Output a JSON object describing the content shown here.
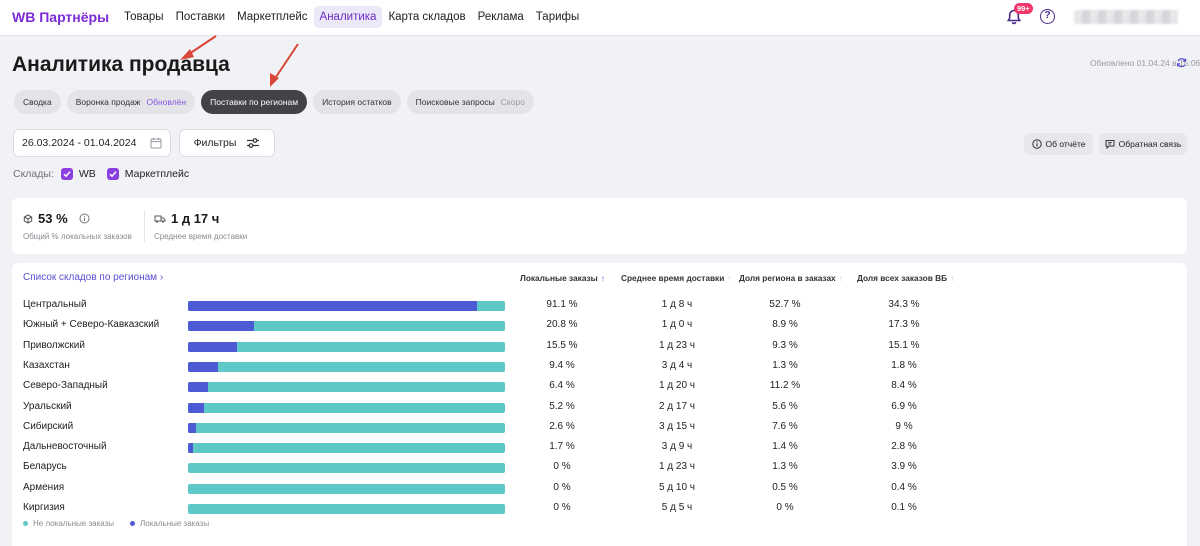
{
  "brand": "WB Партнёры",
  "nav": {
    "items": [
      {
        "label": "Товары"
      },
      {
        "label": "Поставки"
      },
      {
        "label": "Маркетплейс"
      },
      {
        "label": "Аналитика",
        "active": true
      },
      {
        "label": "Карта складов"
      },
      {
        "label": "Реклама"
      },
      {
        "label": "Тарифы"
      }
    ],
    "notifications_badge": "99+",
    "help_icon": "?"
  },
  "page": {
    "title": "Аналитика продавца",
    "updated": "Обновлено 01.04.24 в 15:06"
  },
  "tabs": [
    {
      "label": "Сводка",
      "sub": ""
    },
    {
      "label": "Воронка продаж",
      "sub": "Обновлён"
    },
    {
      "label": "Поставки по регионам",
      "sub": "",
      "active": true
    },
    {
      "label": "История остатков",
      "sub": ""
    },
    {
      "label": "Поисковые запросы",
      "sub": "Скоро"
    }
  ],
  "filters": {
    "date_range": "26.03.2024 - 01.04.2024",
    "filters_label": "Фильтры",
    "report_label": "Об отчёте",
    "feedback_label": "Обратная связь",
    "warehouses_label": "Склады:",
    "warehouse_options": [
      {
        "label": "WB",
        "checked": true
      },
      {
        "label": "Маркетплейс",
        "checked": true
      }
    ]
  },
  "kpi": [
    {
      "value": "53 %",
      "label": "Общий % локальных заказов",
      "icon": "box-icon"
    },
    {
      "value": "1 д 17 ч",
      "label": "Среднее время доставки",
      "icon": "truck-icon"
    }
  ],
  "table": {
    "link": "Список складов по регионам",
    "columns": [
      {
        "label": "Локальные заказы",
        "sorted": true
      },
      {
        "label": "Среднее время доставки",
        "sorted": false
      },
      {
        "label": "Доля региона в заказах",
        "sorted": false
      },
      {
        "label": "Доля всех заказов ВБ",
        "sorted": false
      }
    ],
    "rows": [
      {
        "name": "Центральный",
        "local_share": 0.911,
        "local": "91.1 %",
        "time": "1 д 8 ч",
        "region_share": "52.7 %",
        "wb_share": "34.3 %"
      },
      {
        "name": "Южный + Северо-Кавказский",
        "local_share": 0.208,
        "local": "20.8 %",
        "time": "1 д 0 ч",
        "region_share": "8.9 %",
        "wb_share": "17.3 %"
      },
      {
        "name": "Приволжский",
        "local_share": 0.155,
        "local": "15.5 %",
        "time": "1 д 23 ч",
        "region_share": "9.3 %",
        "wb_share": "15.1 %"
      },
      {
        "name": "Казахстан",
        "local_share": 0.094,
        "local": "9.4 %",
        "time": "3 д 4 ч",
        "region_share": "1.3 %",
        "wb_share": "1.8 %"
      },
      {
        "name": "Северо-Западный",
        "local_share": 0.064,
        "local": "6.4 %",
        "time": "1 д 20 ч",
        "region_share": "11.2 %",
        "wb_share": "8.4 %"
      },
      {
        "name": "Уральский",
        "local_share": 0.052,
        "local": "5.2 %",
        "time": "2 д 17 ч",
        "region_share": "5.6 %",
        "wb_share": "6.9 %"
      },
      {
        "name": "Сибирский",
        "local_share": 0.026,
        "local": "2.6 %",
        "time": "3 д 15 ч",
        "region_share": "7.6 %",
        "wb_share": "9 %"
      },
      {
        "name": "Дальневосточный",
        "local_share": 0.017,
        "local": "1.7 %",
        "time": "3 д 9 ч",
        "region_share": "1.4 %",
        "wb_share": "2.8 %"
      },
      {
        "name": "Беларусь",
        "local_share": 0,
        "local": "0 %",
        "time": "1 д 23 ч",
        "region_share": "1.3 %",
        "wb_share": "3.9 %"
      },
      {
        "name": "Армения",
        "local_share": 0,
        "local": "0 %",
        "time": "5 д 10 ч",
        "region_share": "0.5 %",
        "wb_share": "0.4 %"
      },
      {
        "name": "Киргизия",
        "local_share": 0,
        "local": "0 %",
        "time": "5 д 5 ч",
        "region_share": "0 %",
        "wb_share": "0.1 %"
      }
    ],
    "legend": [
      {
        "label": "Не локальные заказы",
        "color": "#5ec8c9"
      },
      {
        "label": "Локальные заказы",
        "color": "#4c5bd4"
      }
    ]
  },
  "colors": {
    "brand": "#7b2bd8",
    "local_bar": "#4c5bd4",
    "nonlocal_bar": "#5ec8c9",
    "annotation_arrow": "#d9463a"
  }
}
